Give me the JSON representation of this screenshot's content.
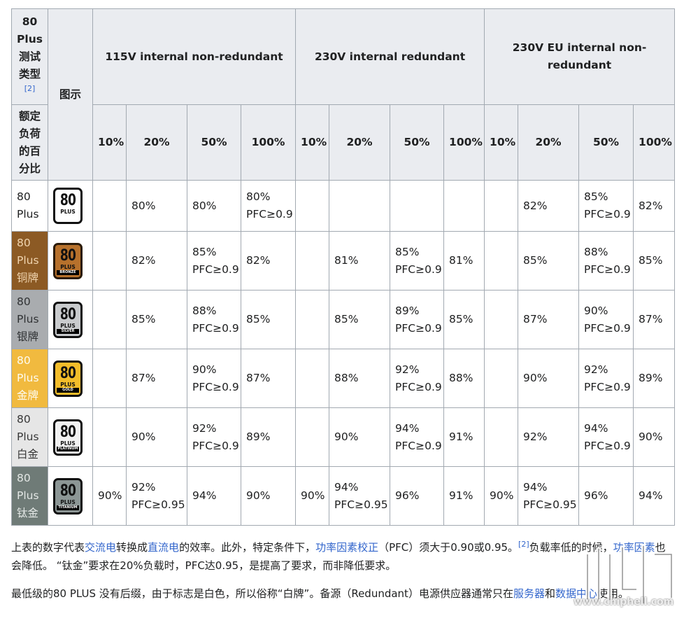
{
  "header": {
    "type_label": "80 Plus测试类型",
    "type_ref": "[2]",
    "logo_col": "图示",
    "load_label": "额定负荷的百分比",
    "groups": [
      "115V internal non-redundant",
      "230V internal redundant",
      "230V EU internal non-redundant"
    ],
    "loads": [
      "10%",
      "20%",
      "50%",
      "100%",
      "10%",
      "20%",
      "50%",
      "100%",
      "10%",
      "20%",
      "50%",
      "100%"
    ]
  },
  "rows": [
    {
      "name_en": "80 Plus",
      "name_cn": "",
      "badge": "",
      "style": "plain",
      "cells": [
        [
          "",
          ""
        ],
        [
          "80%",
          ""
        ],
        [
          "80%",
          ""
        ],
        [
          "80%",
          "PFC≥0.9"
        ],
        [
          "",
          ""
        ],
        [
          "",
          ""
        ],
        [
          "",
          ""
        ],
        [
          "",
          ""
        ],
        [
          "",
          ""
        ],
        [
          "82%",
          ""
        ],
        [
          "85%",
          "PFC≥0.9"
        ],
        [
          "82%",
          ""
        ]
      ]
    },
    {
      "name_en": "80 Plus",
      "name_cn": "铜牌",
      "badge": "BRONZE",
      "style": "bronze",
      "cells": [
        [
          "",
          ""
        ],
        [
          "82%",
          ""
        ],
        [
          "85%",
          "PFC≥0.9"
        ],
        [
          "82%",
          ""
        ],
        [
          "",
          ""
        ],
        [
          "81%",
          ""
        ],
        [
          "85%",
          "PFC≥0.9"
        ],
        [
          "81%",
          ""
        ],
        [
          "",
          ""
        ],
        [
          "85%",
          ""
        ],
        [
          "88%",
          "PFC≥0.9"
        ],
        [
          "85%",
          ""
        ]
      ]
    },
    {
      "name_en": "80 Plus",
      "name_cn": "银牌",
      "badge": "SILVER",
      "style": "silver",
      "cells": [
        [
          "",
          ""
        ],
        [
          "85%",
          ""
        ],
        [
          "88%",
          "PFC≥0.9"
        ],
        [
          "85%",
          ""
        ],
        [
          "",
          ""
        ],
        [
          "85%",
          ""
        ],
        [
          "89%",
          "PFC≥0.9"
        ],
        [
          "85%",
          ""
        ],
        [
          "",
          ""
        ],
        [
          "87%",
          ""
        ],
        [
          "90%",
          "PFC≥0.9"
        ],
        [
          "87%",
          ""
        ]
      ]
    },
    {
      "name_en": "80 Plus",
      "name_cn": "金牌",
      "badge": "GOLD",
      "style": "gold",
      "cells": [
        [
          "",
          ""
        ],
        [
          "87%",
          ""
        ],
        [
          "90%",
          "PFC≥0.9"
        ],
        [
          "87%",
          ""
        ],
        [
          "",
          ""
        ],
        [
          "88%",
          ""
        ],
        [
          "92%",
          "PFC≥0.9"
        ],
        [
          "88%",
          ""
        ],
        [
          "",
          ""
        ],
        [
          "90%",
          ""
        ],
        [
          "92%",
          "PFC≥0.9"
        ],
        [
          "89%",
          ""
        ]
      ]
    },
    {
      "name_en": "80 Plus",
      "name_cn": "白金",
      "badge": "PLATINUM",
      "style": "plat",
      "cells": [
        [
          "",
          ""
        ],
        [
          "90%",
          ""
        ],
        [
          "92%",
          "PFC≥0.9"
        ],
        [
          "89%",
          ""
        ],
        [
          "",
          ""
        ],
        [
          "90%",
          ""
        ],
        [
          "94%",
          "PFC≥0.9"
        ],
        [
          "91%",
          ""
        ],
        [
          "",
          ""
        ],
        [
          "92%",
          ""
        ],
        [
          "94%",
          "PFC≥0.9"
        ],
        [
          "90%",
          ""
        ]
      ]
    },
    {
      "name_en": "80 Plus",
      "name_cn": "钛金",
      "badge": "TITANIUM",
      "style": "tit",
      "cells": [
        [
          "90%",
          ""
        ],
        [
          "92%",
          "PFC≥0.95"
        ],
        [
          "94%",
          ""
        ],
        [
          "90%",
          ""
        ],
        [
          "90%",
          ""
        ],
        [
          "94%",
          "PFC≥0.95"
        ],
        [
          "96%",
          ""
        ],
        [
          "91%",
          ""
        ],
        [
          "90%",
          ""
        ],
        [
          "94%",
          "PFC≥0.95"
        ],
        [
          "96%",
          ""
        ],
        [
          "94%",
          ""
        ]
      ]
    }
  ],
  "badge_text": {
    "big": "80",
    "small": "PLUS"
  },
  "para1": {
    "t1": "上表的数字代表",
    "l1": "交流电",
    "t2": "转换成",
    "l2": "直流电",
    "t3": "的效率。此外，特定条件下，",
    "l3": "功率因素校正",
    "t4": "（PFC）须大于0.90或0.95。",
    "ref": "[2]",
    "t5": "负载率低的时候，",
    "l4": "功率因素",
    "t6": "也会降低。 “钛金”要求在20%负载时，PFC达0.95，是提高了要求，而非降低要求。"
  },
  "para2": {
    "t1": "最低级的80 PLUS 没有后缀，由于标志是白色，所以俗称“白牌”。备源（Redundant）电源供应器通常只在",
    "l1": "服务器",
    "t2": "和",
    "l2": "数据中心",
    "t3": "使用。"
  },
  "watermark": {
    "url": "www.chiphell.com"
  }
}
